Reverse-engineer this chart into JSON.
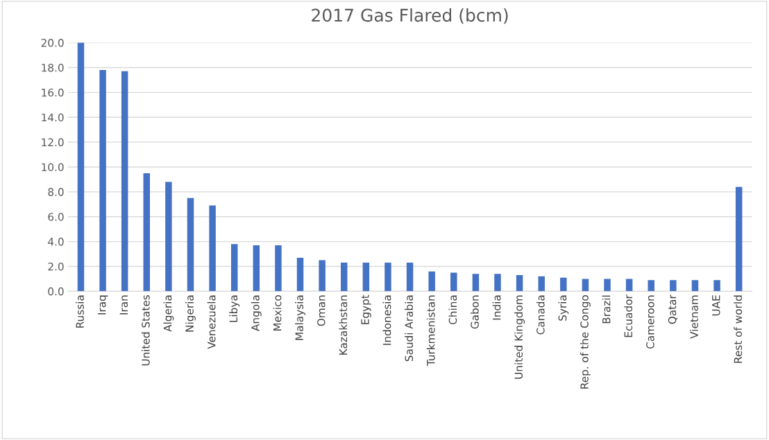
{
  "chart_data": {
    "type": "bar",
    "title": "2017 Gas Flared (bcm)",
    "categories": [
      "Russia",
      "Iraq",
      "Iran",
      "United States",
      "Algeria",
      "Nigeria",
      "Venezuela",
      "Libya",
      "Angola",
      "Mexico",
      "Malaysia",
      "Oman",
      "Kazakhstan",
      "Egypt",
      "Indonesia",
      "Saudi Arabia",
      "Turkmenistan",
      "China",
      "Gabon",
      "India",
      "United Kingdom",
      "Canada",
      "Syria",
      "Rep. of the Congo",
      "Brazil",
      "Ecuador",
      "Cameroon",
      "Qatar",
      "Vietnam",
      "UAE",
      "Rest of world"
    ],
    "values": [
      20.0,
      17.8,
      17.7,
      9.5,
      8.8,
      7.5,
      6.9,
      3.8,
      3.7,
      3.7,
      2.7,
      2.5,
      2.3,
      2.3,
      2.3,
      2.3,
      1.6,
      1.5,
      1.4,
      1.4,
      1.3,
      1.2,
      1.1,
      1.0,
      1.0,
      1.0,
      0.9,
      0.9,
      0.9,
      0.9,
      8.4
    ],
    "color": "#4472c4",
    "ylim": [
      0,
      20
    ],
    "yticks": [
      {
        "value": 0,
        "label": "0.0"
      },
      {
        "value": 2,
        "label": "2.0"
      },
      {
        "value": 4,
        "label": "4.0"
      },
      {
        "value": 6,
        "label": "6.0"
      },
      {
        "value": 8,
        "label": "8.0"
      },
      {
        "value": 10,
        "label": "10.0"
      },
      {
        "value": 12,
        "label": "12.0"
      },
      {
        "value": 14,
        "label": "14.0"
      },
      {
        "value": 16,
        "label": "16.0"
      },
      {
        "value": 18,
        "label": "18.0"
      },
      {
        "value": 20,
        "label": "20.0"
      }
    ],
    "grid": "y"
  }
}
